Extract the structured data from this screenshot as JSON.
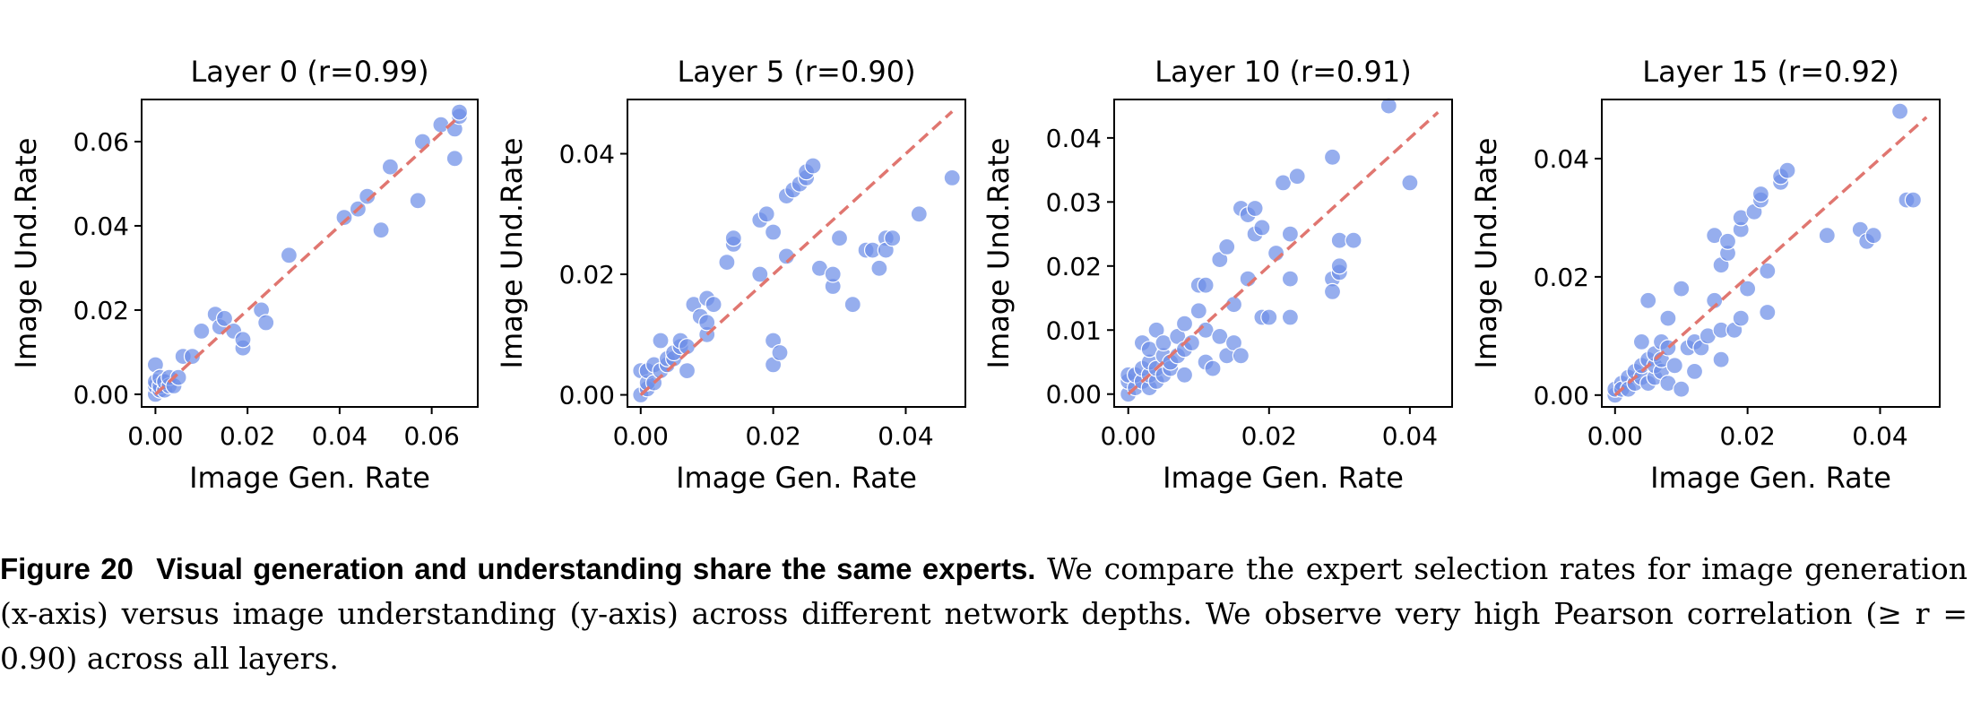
{
  "chart_data": [
    {
      "type": "scatter",
      "title": "Layer 0 (r=0.99)",
      "xlabel": "Image Gen. Rate",
      "ylabel": "Image Und.Rate",
      "xlim": [
        -0.003,
        0.07
      ],
      "ylim": [
        -0.003,
        0.07
      ],
      "xticks": [
        0.0,
        0.02,
        0.04,
        0.06
      ],
      "yticks": [
        0.0,
        0.02,
        0.04,
        0.06
      ],
      "xtick_labels": [
        "0.00",
        "0.02",
        "0.04",
        "0.06"
      ],
      "ytick_labels": [
        "0.00",
        "0.02",
        "0.04",
        "0.06"
      ],
      "fit_line": [
        [
          0.0,
          0.0
        ],
        [
          0.066,
          0.066
        ]
      ],
      "points": [
        [
          0.0,
          0.0
        ],
        [
          0.0,
          0.002
        ],
        [
          0.0,
          0.003
        ],
        [
          0.0,
          0.007
        ],
        [
          0.001,
          0.001
        ],
        [
          0.001,
          0.002
        ],
        [
          0.001,
          0.004
        ],
        [
          0.002,
          0.001
        ],
        [
          0.002,
          0.003
        ],
        [
          0.003,
          0.002
        ],
        [
          0.003,
          0.004
        ],
        [
          0.004,
          0.002
        ],
        [
          0.005,
          0.004
        ],
        [
          0.006,
          0.009
        ],
        [
          0.008,
          0.009
        ],
        [
          0.01,
          0.015
        ],
        [
          0.013,
          0.019
        ],
        [
          0.014,
          0.016
        ],
        [
          0.015,
          0.018
        ],
        [
          0.017,
          0.015
        ],
        [
          0.019,
          0.011
        ],
        [
          0.019,
          0.013
        ],
        [
          0.023,
          0.02
        ],
        [
          0.024,
          0.017
        ],
        [
          0.029,
          0.033
        ],
        [
          0.041,
          0.042
        ],
        [
          0.044,
          0.044
        ],
        [
          0.046,
          0.047
        ],
        [
          0.049,
          0.039
        ],
        [
          0.051,
          0.054
        ],
        [
          0.057,
          0.046
        ],
        [
          0.058,
          0.06
        ],
        [
          0.062,
          0.064
        ],
        [
          0.065,
          0.056
        ],
        [
          0.065,
          0.063
        ],
        [
          0.066,
          0.066
        ],
        [
          0.066,
          0.067
        ]
      ]
    },
    {
      "type": "scatter",
      "title": "Layer 5 (r=0.90)",
      "xlabel": "Image Gen. Rate",
      "ylabel": "Image Und.Rate",
      "xlim": [
        -0.002,
        0.049
      ],
      "ylim": [
        -0.002,
        0.049
      ],
      "xticks": [
        0.0,
        0.02,
        0.04
      ],
      "yticks": [
        0.0,
        0.02,
        0.04
      ],
      "xtick_labels": [
        "0.00",
        "0.02",
        "0.04"
      ],
      "ytick_labels": [
        "0.00",
        "0.02",
        "0.04"
      ],
      "fit_line": [
        [
          0.0,
          0.0
        ],
        [
          0.047,
          0.047
        ]
      ],
      "points": [
        [
          0.0,
          0.0
        ],
        [
          0.0,
          0.004
        ],
        [
          0.001,
          0.001
        ],
        [
          0.001,
          0.002
        ],
        [
          0.001,
          0.004
        ],
        [
          0.002,
          0.002
        ],
        [
          0.002,
          0.005
        ],
        [
          0.003,
          0.004
        ],
        [
          0.003,
          0.009
        ],
        [
          0.004,
          0.005
        ],
        [
          0.004,
          0.006
        ],
        [
          0.005,
          0.006
        ],
        [
          0.005,
          0.007
        ],
        [
          0.006,
          0.008
        ],
        [
          0.006,
          0.009
        ],
        [
          0.007,
          0.004
        ],
        [
          0.007,
          0.008
        ],
        [
          0.008,
          0.015
        ],
        [
          0.009,
          0.013
        ],
        [
          0.01,
          0.01
        ],
        [
          0.01,
          0.012
        ],
        [
          0.01,
          0.016
        ],
        [
          0.011,
          0.015
        ],
        [
          0.013,
          0.022
        ],
        [
          0.014,
          0.025
        ],
        [
          0.014,
          0.026
        ],
        [
          0.018,
          0.029
        ],
        [
          0.018,
          0.02
        ],
        [
          0.019,
          0.03
        ],
        [
          0.02,
          0.027
        ],
        [
          0.02,
          0.005
        ],
        [
          0.02,
          0.009
        ],
        [
          0.021,
          0.007
        ],
        [
          0.022,
          0.033
        ],
        [
          0.022,
          0.023
        ],
        [
          0.023,
          0.034
        ],
        [
          0.024,
          0.035
        ],
        [
          0.025,
          0.036
        ],
        [
          0.025,
          0.037
        ],
        [
          0.026,
          0.038
        ],
        [
          0.027,
          0.021
        ],
        [
          0.029,
          0.018
        ],
        [
          0.029,
          0.02
        ],
        [
          0.03,
          0.026
        ],
        [
          0.032,
          0.015
        ],
        [
          0.034,
          0.024
        ],
        [
          0.035,
          0.024
        ],
        [
          0.036,
          0.021
        ],
        [
          0.037,
          0.026
        ],
        [
          0.037,
          0.024
        ],
        [
          0.038,
          0.026
        ],
        [
          0.042,
          0.03
        ],
        [
          0.047,
          0.036
        ]
      ]
    },
    {
      "type": "scatter",
      "title": "Layer 10 (r=0.91)",
      "xlabel": "Image Gen. Rate",
      "ylabel": "Image Und.Rate",
      "xlim": [
        -0.002,
        0.046
      ],
      "ylim": [
        -0.002,
        0.046
      ],
      "xticks": [
        0.0,
        0.02,
        0.04
      ],
      "yticks": [
        0.0,
        0.01,
        0.02,
        0.03,
        0.04
      ],
      "xtick_labels": [
        "0.00",
        "0.02",
        "0.04"
      ],
      "ytick_labels": [
        "0.00",
        "0.01",
        "0.02",
        "0.03",
        "0.04"
      ],
      "fit_line": [
        [
          0.0,
          0.0
        ],
        [
          0.044,
          0.044
        ]
      ],
      "points": [
        [
          0.0,
          0.0
        ],
        [
          0.0,
          0.002
        ],
        [
          0.0,
          0.003
        ],
        [
          0.001,
          0.001
        ],
        [
          0.001,
          0.003
        ],
        [
          0.002,
          0.002
        ],
        [
          0.002,
          0.004
        ],
        [
          0.002,
          0.008
        ],
        [
          0.003,
          0.001
        ],
        [
          0.003,
          0.003
        ],
        [
          0.003,
          0.005
        ],
        [
          0.003,
          0.007
        ],
        [
          0.004,
          0.002
        ],
        [
          0.004,
          0.004
        ],
        [
          0.004,
          0.01
        ],
        [
          0.005,
          0.003
        ],
        [
          0.005,
          0.006
        ],
        [
          0.005,
          0.008
        ],
        [
          0.006,
          0.004
        ],
        [
          0.006,
          0.005
        ],
        [
          0.007,
          0.006
        ],
        [
          0.007,
          0.009
        ],
        [
          0.008,
          0.007
        ],
        [
          0.008,
          0.011
        ],
        [
          0.008,
          0.003
        ],
        [
          0.009,
          0.008
        ],
        [
          0.01,
          0.013
        ],
        [
          0.01,
          0.017
        ],
        [
          0.011,
          0.005
        ],
        [
          0.011,
          0.01
        ],
        [
          0.011,
          0.017
        ],
        [
          0.012,
          0.004
        ],
        [
          0.013,
          0.021
        ],
        [
          0.013,
          0.009
        ],
        [
          0.014,
          0.006
        ],
        [
          0.014,
          0.023
        ],
        [
          0.015,
          0.014
        ],
        [
          0.015,
          0.008
        ],
        [
          0.016,
          0.029
        ],
        [
          0.016,
          0.006
        ],
        [
          0.017,
          0.028
        ],
        [
          0.017,
          0.018
        ],
        [
          0.018,
          0.025
        ],
        [
          0.018,
          0.029
        ],
        [
          0.019,
          0.012
        ],
        [
          0.019,
          0.026
        ],
        [
          0.02,
          0.012
        ],
        [
          0.021,
          0.022
        ],
        [
          0.022,
          0.033
        ],
        [
          0.023,
          0.025
        ],
        [
          0.023,
          0.018
        ],
        [
          0.023,
          0.012
        ],
        [
          0.024,
          0.034
        ],
        [
          0.029,
          0.018
        ],
        [
          0.029,
          0.016
        ],
        [
          0.029,
          0.037
        ],
        [
          0.03,
          0.019
        ],
        [
          0.03,
          0.02
        ],
        [
          0.03,
          0.024
        ],
        [
          0.032,
          0.024
        ],
        [
          0.037,
          0.045
        ],
        [
          0.04,
          0.033
        ]
      ]
    },
    {
      "type": "scatter",
      "title": "Layer 15 (r=0.92)",
      "xlabel": "Image Gen. Rate",
      "ylabel": "Image Und.Rate",
      "xlim": [
        -0.002,
        0.049
      ],
      "ylim": [
        -0.002,
        0.05
      ],
      "xticks": [
        0.0,
        0.02,
        0.04
      ],
      "yticks": [
        0.0,
        0.02,
        0.04
      ],
      "xtick_labels": [
        "0.00",
        "0.02",
        "0.04"
      ],
      "ytick_labels": [
        "0.00",
        "0.02",
        "0.04"
      ],
      "fit_line": [
        [
          0.0,
          0.0
        ],
        [
          0.047,
          0.047
        ]
      ],
      "points": [
        [
          0.0,
          0.0
        ],
        [
          0.0,
          0.001
        ],
        [
          0.001,
          0.002
        ],
        [
          0.001,
          0.001
        ],
        [
          0.002,
          0.003
        ],
        [
          0.002,
          0.001
        ],
        [
          0.003,
          0.002
        ],
        [
          0.003,
          0.004
        ],
        [
          0.004,
          0.003
        ],
        [
          0.004,
          0.005
        ],
        [
          0.004,
          0.009
        ],
        [
          0.005,
          0.002
        ],
        [
          0.005,
          0.016
        ],
        [
          0.005,
          0.006
        ],
        [
          0.006,
          0.003
        ],
        [
          0.006,
          0.005
        ],
        [
          0.006,
          0.007
        ],
        [
          0.007,
          0.004
        ],
        [
          0.007,
          0.006
        ],
        [
          0.007,
          0.009
        ],
        [
          0.008,
          0.008
        ],
        [
          0.008,
          0.002
        ],
        [
          0.008,
          0.013
        ],
        [
          0.009,
          0.005
        ],
        [
          0.01,
          0.001
        ],
        [
          0.01,
          0.018
        ],
        [
          0.011,
          0.008
        ],
        [
          0.012,
          0.009
        ],
        [
          0.012,
          0.004
        ],
        [
          0.013,
          0.008
        ],
        [
          0.014,
          0.01
        ],
        [
          0.015,
          0.027
        ],
        [
          0.015,
          0.016
        ],
        [
          0.016,
          0.006
        ],
        [
          0.016,
          0.011
        ],
        [
          0.016,
          0.022
        ],
        [
          0.017,
          0.024
        ],
        [
          0.017,
          0.026
        ],
        [
          0.018,
          0.011
        ],
        [
          0.019,
          0.013
        ],
        [
          0.019,
          0.028
        ],
        [
          0.019,
          0.03
        ],
        [
          0.02,
          0.018
        ],
        [
          0.021,
          0.031
        ],
        [
          0.022,
          0.033
        ],
        [
          0.022,
          0.034
        ],
        [
          0.023,
          0.014
        ],
        [
          0.023,
          0.021
        ],
        [
          0.025,
          0.036
        ],
        [
          0.025,
          0.037
        ],
        [
          0.026,
          0.038
        ],
        [
          0.032,
          0.027
        ],
        [
          0.037,
          0.028
        ],
        [
          0.038,
          0.026
        ],
        [
          0.039,
          0.027
        ],
        [
          0.043,
          0.048
        ],
        [
          0.044,
          0.033
        ],
        [
          0.045,
          0.033
        ]
      ]
    }
  ],
  "caption": {
    "figure_number": "Figure 20",
    "heading": "Visual generation and understanding share the same experts.",
    "body": "We compare the expert selection rates for image generation (x-axis) versus image understanding (y-axis) across different network depths. We observe very high Pearson correlation (≥ r = 0.90) across all layers."
  },
  "colors": {
    "point_fill": "#6d8fe8",
    "point_stroke": "#ffffff",
    "fit_line": "#e07670",
    "axes": "#000000"
  }
}
